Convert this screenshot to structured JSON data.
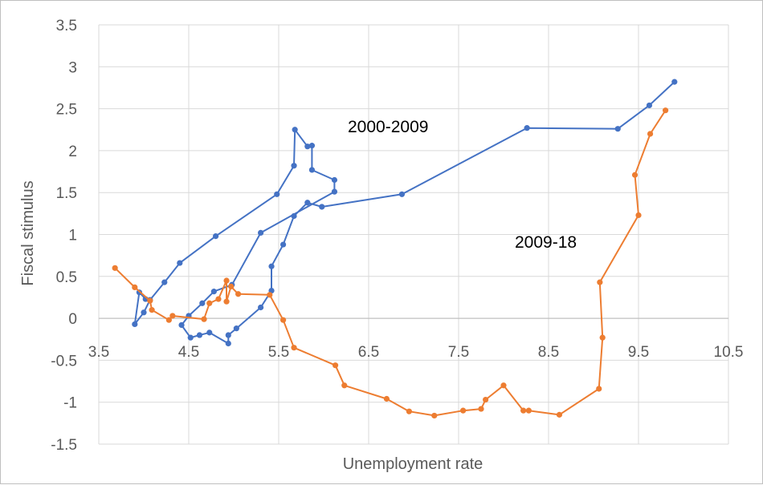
{
  "chart_data": {
    "type": "scatter",
    "xlabel": "Unemployment rate",
    "ylabel": "Fiscal stimulus",
    "xlim": [
      3.5,
      10.5
    ],
    "ylim": [
      -1.5,
      3.5
    ],
    "x_ticks": [
      "3.5",
      "4.5",
      "5.5",
      "6.5",
      "7.5",
      "8.5",
      "9.5",
      "10.5"
    ],
    "x_tick_values": [
      3.5,
      4.5,
      5.5,
      6.5,
      7.5,
      8.5,
      9.5,
      10.5
    ],
    "y_ticks": [
      "3.5",
      "3",
      "2.5",
      "2",
      "1.5",
      "1",
      "0.5",
      "0",
      "-0.5",
      "-1",
      "-1.5"
    ],
    "y_tick_values": [
      3.5,
      3,
      2.5,
      2,
      1.5,
      1,
      0.5,
      0,
      -0.5,
      -1,
      -1.5
    ],
    "grid": true,
    "annotations": [
      {
        "text": "2000-2009",
        "x": 7.5,
        "y": 2.25
      },
      {
        "text": "2009-18",
        "x": 8.5,
        "y": 0.85
      }
    ],
    "series": [
      {
        "color": "#4472c4",
        "points": [
          [
            9.9,
            2.82
          ],
          [
            9.62,
            2.54
          ],
          [
            9.27,
            2.26
          ],
          [
            8.26,
            2.27
          ],
          [
            6.87,
            1.48
          ],
          [
            5.98,
            1.33
          ],
          [
            5.82,
            1.38
          ],
          [
            5.67,
            1.22
          ],
          [
            5.55,
            0.88
          ],
          [
            5.42,
            0.62
          ],
          [
            5.42,
            0.33
          ],
          [
            5.3,
            0.13
          ],
          [
            5.03,
            -0.12
          ],
          [
            4.94,
            -0.2
          ],
          [
            4.94,
            -0.3
          ],
          [
            4.73,
            -0.17
          ],
          [
            4.62,
            -0.2
          ],
          [
            4.52,
            -0.23
          ],
          [
            4.42,
            -0.08
          ],
          [
            4.5,
            0.03
          ],
          [
            4.65,
            0.18
          ],
          [
            4.78,
            0.32
          ],
          [
            4.98,
            0.4
          ],
          [
            5.3,
            1.02
          ],
          [
            6.12,
            1.51
          ],
          [
            6.12,
            1.65
          ],
          [
            5.87,
            1.77
          ],
          [
            5.87,
            2.06
          ],
          [
            5.82,
            2.05
          ],
          [
            5.68,
            2.25
          ],
          [
            5.67,
            1.82
          ],
          [
            5.48,
            1.48
          ],
          [
            4.8,
            0.98
          ],
          [
            4.4,
            0.66
          ],
          [
            4.23,
            0.43
          ],
          [
            4.07,
            0.22
          ],
          [
            4.0,
            0.07
          ],
          [
            3.9,
            -0.07
          ],
          [
            3.95,
            0.31
          ],
          [
            4.02,
            0.23
          ]
        ]
      },
      {
        "color": "#ed7d31",
        "points": [
          [
            9.8,
            2.48
          ],
          [
            9.63,
            2.2
          ],
          [
            9.46,
            1.71
          ],
          [
            9.5,
            1.23
          ],
          [
            9.07,
            0.43
          ],
          [
            9.1,
            -0.23
          ],
          [
            9.06,
            -0.84
          ],
          [
            8.62,
            -1.15
          ],
          [
            8.28,
            -1.1
          ],
          [
            8.22,
            -1.1
          ],
          [
            8.0,
            -0.8
          ],
          [
            7.8,
            -0.97
          ],
          [
            7.75,
            -1.08
          ],
          [
            7.55,
            -1.1
          ],
          [
            7.23,
            -1.16
          ],
          [
            6.95,
            -1.11
          ],
          [
            6.7,
            -0.96
          ],
          [
            6.23,
            -0.8
          ],
          [
            6.13,
            -0.56
          ],
          [
            5.67,
            -0.35
          ],
          [
            5.55,
            -0.02
          ],
          [
            5.4,
            0.28
          ],
          [
            5.05,
            0.29
          ],
          [
            4.97,
            0.38
          ],
          [
            4.92,
            0.2
          ],
          [
            4.92,
            0.45
          ],
          [
            4.83,
            0.23
          ],
          [
            4.73,
            0.18
          ],
          [
            4.67,
            -0.01
          ],
          [
            4.32,
            0.03
          ],
          [
            4.28,
            -0.02
          ],
          [
            4.09,
            0.1
          ],
          [
            4.07,
            0.21
          ],
          [
            3.9,
            0.37
          ],
          [
            3.68,
            0.6
          ]
        ]
      }
    ]
  }
}
